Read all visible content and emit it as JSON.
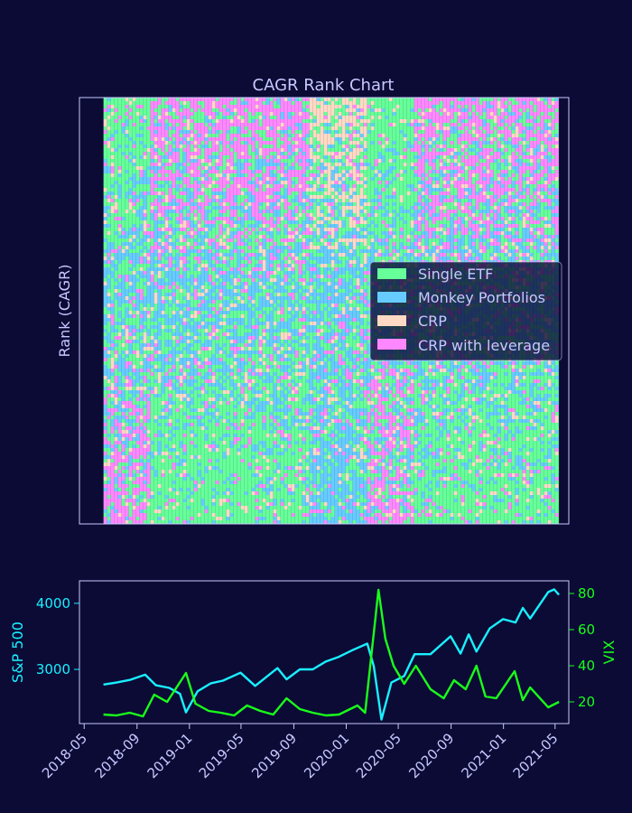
{
  "colors": {
    "background": "#0b0b36",
    "frame": "#c8c8ff",
    "text": "#c8c8ff",
    "sp500": "#19f0ff",
    "vix": "#1aff1a",
    "single_etf": "#66ff99",
    "monkey": "#66ccff",
    "crp": "#ffd9c4",
    "crp_leverage": "#ff88ff"
  },
  "chart_data": [
    {
      "type": "heatmap",
      "title": "CAGR Rank Chart",
      "xlabel": "",
      "ylabel": "Rank (CAGR)",
      "grid": false,
      "legend_position": "center-right",
      "categories": [
        "Single ETF",
        "Monkey Portfolios",
        "CRP",
        "CRP with leverage"
      ],
      "x_range": [
        "2018-06-15",
        "2021-05-10"
      ],
      "dominant_regime": [
        {
          "from": "2018-06-15",
          "to": "2018-10-01",
          "top": "Single ETF",
          "bottom": "CRP with leverage"
        },
        {
          "from": "2018-10-01",
          "to": "2019-03-01",
          "top": "CRP with leverage",
          "bottom": "Single ETF"
        },
        {
          "from": "2019-03-01",
          "to": "2019-10-01",
          "top": "CRP with leverage",
          "bottom": "Single ETF"
        },
        {
          "from": "2019-10-01",
          "to": "2020-02-15",
          "top": "CRP",
          "bottom": "Monkey Portfolios"
        },
        {
          "from": "2020-02-15",
          "to": "2020-06-01",
          "top": "Single ETF",
          "bottom": "CRP with leverage"
        },
        {
          "from": "2020-06-01",
          "to": "2021-05-10",
          "top": "CRP with leverage",
          "bottom": "Single ETF"
        }
      ]
    },
    {
      "type": "line",
      "xlabel": "",
      "x_tick_labels": [
        "2018-05",
        "2018-09",
        "2019-01",
        "2019-05",
        "2019-09",
        "2020-01",
        "2020-05",
        "2020-09",
        "2021-01",
        "2021-05"
      ],
      "y_left": {
        "label": "S&P 500",
        "ticks": [
          3000,
          4000
        ],
        "range": [
          2180,
          4340
        ]
      },
      "y_right": {
        "label": "VIX",
        "ticks": [
          20,
          40,
          60,
          80
        ],
        "range": [
          8,
          87
        ]
      },
      "series": [
        {
          "name": "S&P 500",
          "axis": "left",
          "points": [
            [
              "2018-06-15",
              2770
            ],
            [
              "2018-07-15",
              2800
            ],
            [
              "2018-08-15",
              2840
            ],
            [
              "2018-09-20",
              2920
            ],
            [
              "2018-10-15",
              2760
            ],
            [
              "2018-11-15",
              2720
            ],
            [
              "2018-12-10",
              2630
            ],
            [
              "2018-12-24",
              2350
            ],
            [
              "2019-01-20",
              2670
            ],
            [
              "2019-02-20",
              2790
            ],
            [
              "2019-03-20",
              2830
            ],
            [
              "2019-04-30",
              2950
            ],
            [
              "2019-06-03",
              2750
            ],
            [
              "2019-07-25",
              3020
            ],
            [
              "2019-08-15",
              2850
            ],
            [
              "2019-09-15",
              3000
            ],
            [
              "2019-10-15",
              3000
            ],
            [
              "2019-11-15",
              3120
            ],
            [
              "2019-12-15",
              3190
            ],
            [
              "2020-01-15",
              3290
            ],
            [
              "2020-02-19",
              3390
            ],
            [
              "2020-03-05",
              3050
            ],
            [
              "2020-03-23",
              2240
            ],
            [
              "2020-04-15",
              2800
            ],
            [
              "2020-05-15",
              2900
            ],
            [
              "2020-06-08",
              3230
            ],
            [
              "2020-07-15",
              3230
            ],
            [
              "2020-08-31",
              3500
            ],
            [
              "2020-09-23",
              3240
            ],
            [
              "2020-10-12",
              3530
            ],
            [
              "2020-10-30",
              3270
            ],
            [
              "2020-11-30",
              3620
            ],
            [
              "2020-12-31",
              3760
            ],
            [
              "2021-01-29",
              3710
            ],
            [
              "2021-02-15",
              3930
            ],
            [
              "2021-03-04",
              3770
            ],
            [
              "2021-04-15",
              4170
            ],
            [
              "2021-04-29",
              4210
            ],
            [
              "2021-05-10",
              4130
            ]
          ]
        },
        {
          "name": "VIX",
          "axis": "right",
          "points": [
            [
              "2018-06-15",
              13
            ],
            [
              "2018-07-15",
              12.5
            ],
            [
              "2018-08-15",
              14
            ],
            [
              "2018-09-15",
              12
            ],
            [
              "2018-10-11",
              24
            ],
            [
              "2018-11-10",
              20
            ],
            [
              "2018-12-24",
              36
            ],
            [
              "2019-01-15",
              19
            ],
            [
              "2019-02-15",
              15
            ],
            [
              "2019-03-15",
              14
            ],
            [
              "2019-04-15",
              12.5
            ],
            [
              "2019-05-15",
              18
            ],
            [
              "2019-06-15",
              15
            ],
            [
              "2019-07-15",
              13
            ],
            [
              "2019-08-15",
              22
            ],
            [
              "2019-09-15",
              16
            ],
            [
              "2019-10-15",
              14
            ],
            [
              "2019-11-15",
              12.5
            ],
            [
              "2019-12-15",
              13
            ],
            [
              "2020-01-27",
              18
            ],
            [
              "2020-02-14",
              14
            ],
            [
              "2020-03-16",
              82
            ],
            [
              "2020-04-01",
              55
            ],
            [
              "2020-04-20",
              40
            ],
            [
              "2020-05-15",
              30
            ],
            [
              "2020-06-11",
              40
            ],
            [
              "2020-07-15",
              27
            ],
            [
              "2020-08-15",
              22
            ],
            [
              "2020-09-08",
              32
            ],
            [
              "2020-10-05",
              27
            ],
            [
              "2020-10-30",
              40
            ],
            [
              "2020-11-20",
              23
            ],
            [
              "2020-12-15",
              22
            ],
            [
              "2021-01-27",
              37
            ],
            [
              "2021-02-15",
              21
            ],
            [
              "2021-03-04",
              28
            ],
            [
              "2021-04-15",
              17
            ],
            [
              "2021-05-10",
              20
            ]
          ]
        }
      ]
    }
  ]
}
